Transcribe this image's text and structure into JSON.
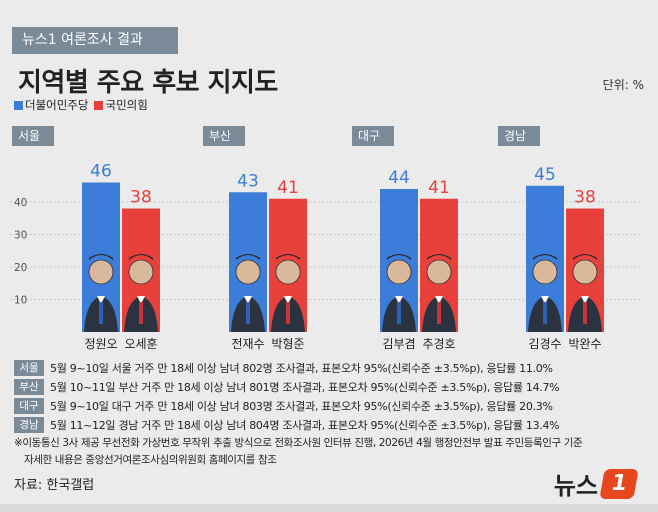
{
  "header": {
    "tag": "뉴스1 여론조사 결과",
    "title": "지역별 주요 후보 지지도",
    "unit": "단위: %"
  },
  "legend": [
    {
      "name": "더불어민주당",
      "color": "#3b7dd8"
    },
    {
      "name": "국민의힘",
      "color": "#e8413c"
    }
  ],
  "chart_data": {
    "type": "bar",
    "title": "지역별 주요 후보 지지도",
    "ylabel": "",
    "ylim": [
      0,
      55
    ],
    "yticks": [
      10,
      20,
      30,
      40
    ],
    "grid": true,
    "categories": [
      "서울",
      "부산",
      "대구",
      "경남"
    ],
    "series": [
      {
        "name": "더불어민주당",
        "color": "#3b7dd8",
        "values": [
          46,
          43,
          44,
          45
        ],
        "candidates": [
          "정원오",
          "전재수",
          "김부겸",
          "김경수"
        ]
      },
      {
        "name": "국민의힘",
        "color": "#e8413c",
        "values": [
          38,
          41,
          41,
          38
        ],
        "candidates": [
          "오세훈",
          "박형준",
          "추경호",
          "박완수"
        ]
      }
    ]
  },
  "notes": [
    {
      "tag": "서울",
      "text": "5월 9~10일 서울 거주 만 18세 이상 남녀 802명 조사결과, 표본오차 95%(신뢰수준 ±3.5%p), 응답률 11.0%"
    },
    {
      "tag": "부산",
      "text": "5월 10~11일 부산 거주 만 18세 이상 남녀 801명 조사결과, 표본오차 95%(신뢰수준 ±3.5%p), 응답률  14.7%"
    },
    {
      "tag": "대구",
      "text": "5월 9~10일 대구 거주 만 18세 이상 남녀 803명 조사결과, 표본오차 95%(신뢰수준 ±3.5%p), 응답률 20.3%"
    },
    {
      "tag": "경남",
      "text": "5월 11~12일 경남 거주 만 18세 이상 남녀 804명 조사결과, 표본오차 95%(신뢰수준 ±3.5%p), 응답률 13.4%"
    }
  ],
  "footnotes": [
    "※이동통신 3사 제공 무선전화 가상번호 무작위 추출 방식으로 전화조사원 인터뷰 진행, 2026년 4월 행정안전부 발표 주민등록인구 기준",
    "  자세한 내용은 중앙선거여론조사심의위원회 홈페이지를 참조"
  ],
  "source": "자료: 한국갤럽",
  "logo": {
    "text": "뉴스",
    "mark": "1"
  }
}
